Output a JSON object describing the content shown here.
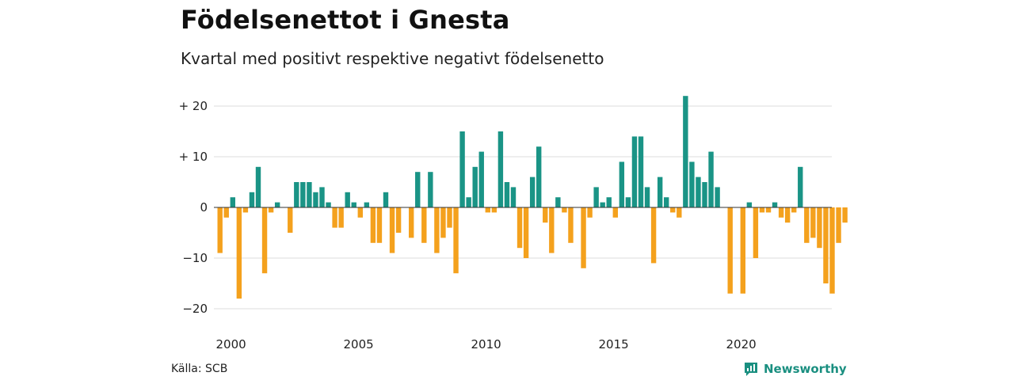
{
  "title": "Födelsenettot i Gnesta",
  "subtitle": "Kvartal med positivt respektive negativt födelsenetto",
  "source": "Källa: SCB",
  "brand": {
    "name": "Newsworthy",
    "icon": "newsworthy-logo-icon"
  },
  "colors": {
    "positive": "#1a9486",
    "negative": "#f4a11d",
    "grid": "#dddddd",
    "axis": "#333333"
  },
  "chart_data": {
    "type": "bar",
    "title": "Födelsenettot i Gnesta",
    "subtitle": "Kvartal med positivt respektive negativt födelsenetto",
    "start_year": 2000,
    "quarters_per_year": 4,
    "x_ticks": [
      "2000",
      "2005",
      "2010",
      "2015",
      "2020"
    ],
    "y_ticks": [
      20,
      10,
      0,
      -10,
      -20
    ],
    "y_tick_labels": [
      "+ 20",
      "+ 10",
      "0",
      "−10",
      "−20"
    ],
    "ylim": [
      -23,
      23
    ],
    "grid": true,
    "values": [
      -9,
      -2,
      2,
      -18,
      -1,
      3,
      8,
      -13,
      -1,
      1,
      0,
      -5,
      5,
      5,
      5,
      3,
      4,
      1,
      -4,
      -4,
      3,
      1,
      -2,
      1,
      -7,
      -7,
      3,
      -9,
      -5,
      0,
      -6,
      7,
      -7,
      7,
      -9,
      -6,
      -4,
      -13,
      15,
      2,
      8,
      11,
      -1,
      -1,
      15,
      5,
      4,
      -8,
      -10,
      6,
      12,
      -3,
      -9,
      2,
      -1,
      -7,
      0,
      -12,
      -2,
      4,
      1,
      2,
      -2,
      9,
      2,
      14,
      14,
      4,
      -11,
      6,
      2,
      -1,
      -2,
      22,
      9,
      6,
      5,
      11,
      4,
      0,
      -17,
      0,
      -17,
      1,
      -10,
      -1,
      -1,
      1,
      -2,
      -3,
      -1,
      8,
      -7,
      -6,
      -8,
      -15,
      -17,
      -7,
      -3
    ]
  }
}
